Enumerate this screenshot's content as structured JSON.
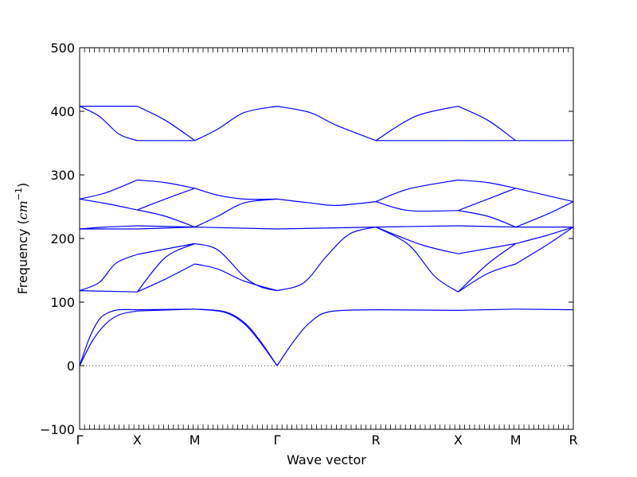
{
  "chart_data": {
    "type": "line",
    "xlabel": "Wave vector",
    "ylabel_prefix": "Frequency (",
    "ylabel_unit": "cm",
    "ylabel_exponent": "−1",
    "ylabel_suffix": ")",
    "ylim": [
      -100,
      500
    ],
    "yticks": [
      -100,
      0,
      100,
      200,
      300,
      400,
      500
    ],
    "xlim": [
      0,
      7.5
    ],
    "kpoints": [
      {
        "label": "Γ",
        "x": 0
      },
      {
        "label": "X",
        "x": 0.875
      },
      {
        "label": "M",
        "x": 1.75
      },
      {
        "label": "Γ",
        "x": 3.0
      },
      {
        "label": "R",
        "x": 4.5
      },
      {
        "label": "X",
        "x": 5.75
      },
      {
        "label": "M",
        "x": 6.625
      },
      {
        "label": "R",
        "x": 7.5
      }
    ],
    "zero_line": true,
    "line_color": "#0000ff",
    "segments": [
      {
        "from": "Γ",
        "to": "X",
        "bands": [
          [
            [
              0,
              0
            ],
            [
              0.15,
              44
            ],
            [
              0.3,
              73
            ],
            [
              0.45,
              84
            ],
            [
              0.6,
              88
            ],
            [
              0.875,
              88
            ]
          ],
          [
            [
              0,
              0
            ],
            [
              0.2,
              40
            ],
            [
              0.4,
              66
            ],
            [
              0.6,
              80
            ],
            [
              0.875,
              86
            ]
          ],
          [
            [
              0,
              118
            ],
            [
              0.875,
              116
            ]
          ],
          [
            [
              0,
              118
            ],
            [
              0.3,
              131
            ],
            [
              0.55,
              161
            ],
            [
              0.875,
              175
            ]
          ],
          [
            [
              0,
              215
            ],
            [
              0.875,
              215
            ]
          ],
          [
            [
              0,
              215
            ],
            [
              0.4,
              218
            ],
            [
              0.875,
              220
            ]
          ],
          [
            [
              0,
              262
            ],
            [
              0.4,
              255
            ],
            [
              0.875,
              245
            ]
          ],
          [
            [
              0,
              262
            ],
            [
              0.4,
              272
            ],
            [
              0.875,
              292
            ]
          ],
          [
            [
              0,
              408
            ],
            [
              0.3,
              392
            ],
            [
              0.6,
              364
            ],
            [
              0.875,
              354
            ]
          ],
          [
            [
              0,
              408
            ],
            [
              0.875,
              408
            ]
          ]
        ]
      },
      {
        "from": "X",
        "to": "M",
        "bands": [
          [
            [
              0.875,
              88
            ],
            [
              1.75,
              89
            ]
          ],
          [
            [
              0.875,
              86
            ],
            [
              1.75,
              89
            ]
          ],
          [
            [
              0.875,
              116
            ],
            [
              1.3,
              136
            ],
            [
              1.75,
              160
            ]
          ],
          [
            [
              0.875,
              116
            ],
            [
              1.3,
              170
            ],
            [
              1.75,
              192
            ]
          ],
          [
            [
              0.875,
              175
            ],
            [
              1.75,
              192
            ]
          ],
          [
            [
              0.875,
              215
            ],
            [
              1.75,
              218
            ]
          ],
          [
            [
              0.875,
              220
            ],
            [
              1.75,
              218
            ]
          ],
          [
            [
              0.875,
              245
            ],
            [
              1.3,
              235
            ],
            [
              1.75,
              218
            ]
          ],
          [
            [
              0.875,
              245
            ],
            [
              1.3,
              262
            ],
            [
              1.75,
              279
            ]
          ],
          [
            [
              0.875,
              292
            ],
            [
              1.3,
              288
            ],
            [
              1.75,
              279
            ]
          ],
          [
            [
              0.875,
              354
            ],
            [
              1.75,
              354
            ]
          ],
          [
            [
              0.875,
              408
            ],
            [
              1.3,
              386
            ],
            [
              1.75,
              354
            ]
          ]
        ]
      },
      {
        "from": "M",
        "to": "Γ",
        "bands": [
          [
            [
              1.75,
              89
            ],
            [
              2.2,
              85
            ],
            [
              2.5,
              68
            ],
            [
              2.75,
              38
            ],
            [
              3.0,
              0
            ]
          ],
          [
            [
              1.75,
              89
            ],
            [
              2.2,
              84
            ],
            [
              2.5,
              66
            ],
            [
              2.75,
              36
            ],
            [
              3.0,
              0
            ]
          ],
          [
            [
              1.75,
              160
            ],
            [
              2.1,
              152
            ],
            [
              2.5,
              133
            ],
            [
              3.0,
              118
            ]
          ],
          [
            [
              1.75,
              192
            ],
            [
              2.1,
              182
            ],
            [
              2.5,
              140
            ],
            [
              2.75,
              124
            ],
            [
              3.0,
              118
            ]
          ],
          [
            [
              1.75,
              218
            ],
            [
              3.0,
              215
            ]
          ],
          [
            [
              1.75,
              218
            ],
            [
              2.1,
              235
            ],
            [
              2.5,
              256
            ],
            [
              3.0,
              262
            ]
          ],
          [
            [
              1.75,
              279
            ],
            [
              2.1,
              268
            ],
            [
              2.5,
              262
            ],
            [
              3.0,
              262
            ]
          ],
          [
            [
              1.75,
              354
            ],
            [
              2.1,
              372
            ],
            [
              2.5,
              398
            ],
            [
              3.0,
              408
            ]
          ]
        ]
      },
      {
        "from": "Γ",
        "to": "R",
        "bands": [
          [
            [
              3.0,
              0
            ],
            [
              3.25,
              38
            ],
            [
              3.5,
              68
            ],
            [
              3.8,
              85
            ],
            [
              4.5,
              88
            ]
          ],
          [
            [
              3.0,
              118
            ],
            [
              3.4,
              130
            ],
            [
              3.75,
              172
            ],
            [
              4.1,
              207
            ],
            [
              4.5,
              218
            ]
          ],
          [
            [
              3.0,
              215
            ],
            [
              4.5,
              218
            ]
          ],
          [
            [
              3.0,
              262
            ],
            [
              3.5,
              256
            ],
            [
              3.9,
              252
            ],
            [
              4.5,
              258
            ]
          ],
          [
            [
              3.0,
              408
            ],
            [
              3.5,
              398
            ],
            [
              3.9,
              378
            ],
            [
              4.5,
              354
            ]
          ]
        ]
      },
      {
        "from": "R",
        "to": "X",
        "bands": [
          [
            [
              4.5,
              88
            ],
            [
              5.75,
              87
            ]
          ],
          [
            [
              4.5,
              218
            ],
            [
              5.0,
              190
            ],
            [
              5.4,
              140
            ],
            [
              5.75,
              116
            ]
          ],
          [
            [
              4.5,
              218
            ],
            [
              5.2,
              190
            ],
            [
              5.75,
              176
            ]
          ],
          [
            [
              4.5,
              218
            ],
            [
              5.75,
              220
            ]
          ],
          [
            [
              4.5,
              258
            ],
            [
              5.0,
              244
            ],
            [
              5.75,
              244
            ]
          ],
          [
            [
              4.5,
              258
            ],
            [
              5.0,
              278
            ],
            [
              5.75,
              292
            ]
          ],
          [
            [
              4.5,
              354
            ],
            [
              5.75,
              354
            ]
          ],
          [
            [
              4.5,
              354
            ],
            [
              5.1,
              392
            ],
            [
              5.75,
              408
            ]
          ]
        ]
      },
      {
        "from": "X",
        "to": "M",
        "bands": [
          [
            [
              5.75,
              87
            ],
            [
              6.625,
              89
            ]
          ],
          [
            [
              5.75,
              116
            ],
            [
              6.2,
              160
            ],
            [
              6.625,
              192
            ]
          ],
          [
            [
              5.75,
              116
            ],
            [
              6.2,
              145
            ],
            [
              6.625,
              160
            ]
          ],
          [
            [
              5.75,
              176
            ],
            [
              6.625,
              192
            ]
          ],
          [
            [
              5.75,
              220
            ],
            [
              6.625,
              218
            ]
          ],
          [
            [
              5.75,
              244
            ],
            [
              6.2,
              235
            ],
            [
              6.625,
              218
            ]
          ],
          [
            [
              5.75,
              244
            ],
            [
              6.2,
              262
            ],
            [
              6.625,
              279
            ]
          ],
          [
            [
              5.75,
              292
            ],
            [
              6.2,
              288
            ],
            [
              6.625,
              279
            ]
          ],
          [
            [
              5.75,
              354
            ],
            [
              6.625,
              354
            ]
          ],
          [
            [
              5.75,
              408
            ],
            [
              6.2,
              386
            ],
            [
              6.625,
              354
            ]
          ]
        ]
      },
      {
        "from": "M",
        "to": "R",
        "bands": [
          [
            [
              6.625,
              89
            ],
            [
              7.5,
              88
            ]
          ],
          [
            [
              6.625,
              160
            ],
            [
              7.1,
              190
            ],
            [
              7.5,
              218
            ]
          ],
          [
            [
              6.625,
              192
            ],
            [
              7.1,
              205
            ],
            [
              7.5,
              218
            ]
          ],
          [
            [
              6.625,
              218
            ],
            [
              7.5,
              218
            ]
          ],
          [
            [
              6.625,
              279
            ],
            [
              7.5,
              258
            ]
          ],
          [
            [
              6.625,
              218
            ],
            [
              7.1,
              238
            ],
            [
              7.5,
              258
            ]
          ],
          [
            [
              6.625,
              354
            ],
            [
              7.5,
              354
            ]
          ]
        ]
      }
    ]
  }
}
